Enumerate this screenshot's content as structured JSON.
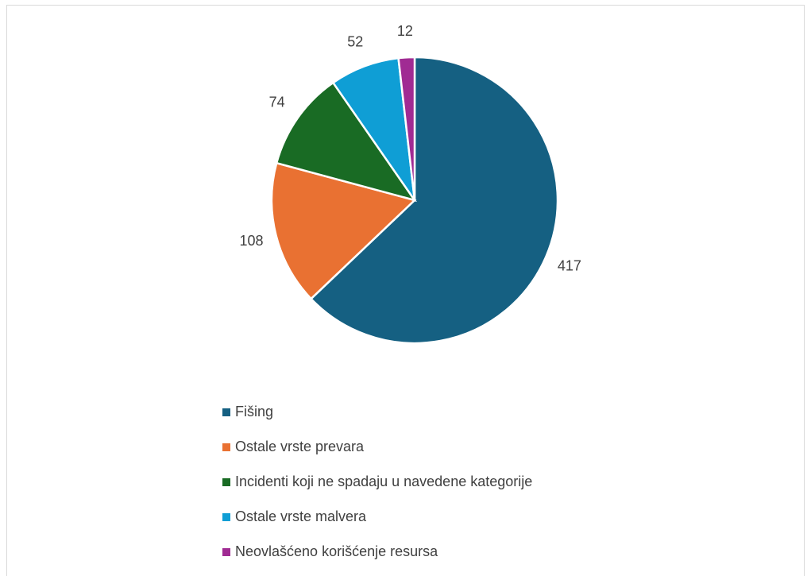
{
  "chart_data": {
    "type": "pie",
    "categories": [
      "Fišing",
      "Ostale vrste prevara",
      "Incidenti koji ne spadaju u navedene kategorije",
      "Ostale vrste malvera",
      "Neovlašćeno korišćenje resursa"
    ],
    "values": [
      417,
      108,
      74,
      52,
      12
    ],
    "colors": [
      "#156082",
      "#e97132",
      "#196b24",
      "#0f9ed5",
      "#a02b93"
    ],
    "legend": "bottom"
  }
}
